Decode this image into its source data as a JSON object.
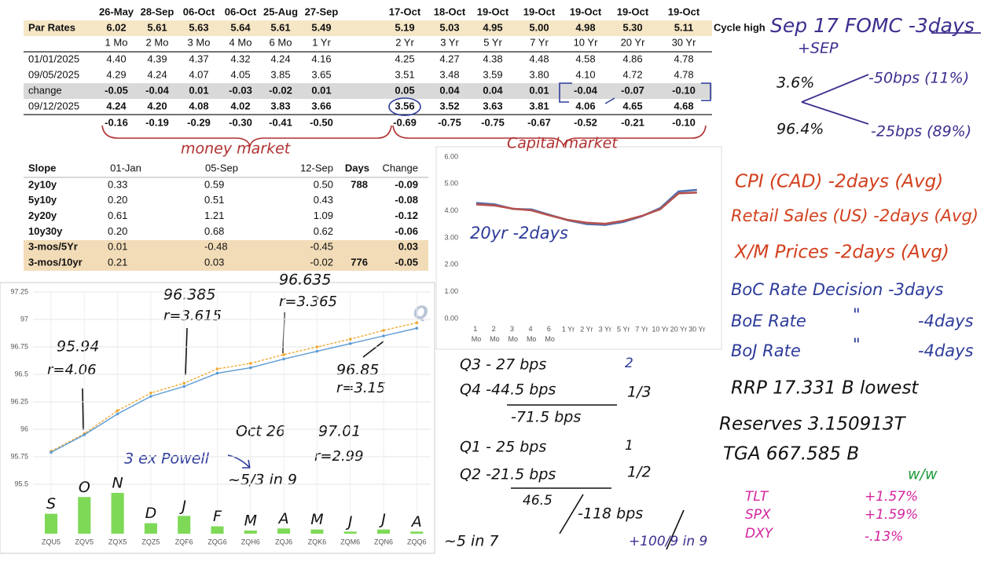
{
  "rates_table": {
    "dates": [
      "26-May",
      "28-Sep",
      "06-Oct",
      "06-Oct",
      "25-Aug",
      "27-Sep",
      "17-Oct",
      "18-Oct",
      "19-Oct",
      "19-Oct",
      "19-Oct",
      "19-Oct",
      "19-Oct"
    ],
    "par_label": "Par Rates",
    "par_rates": [
      "6.02",
      "5.61",
      "5.63",
      "5.64",
      "5.61",
      "5.49",
      "5.19",
      "5.03",
      "4.95",
      "5.00",
      "4.98",
      "5.30",
      "5.11"
    ],
    "cycle_label": "Cycle high",
    "tenors": [
      "1 Mo",
      "2 Mo",
      "3 Mo",
      "4 Mo",
      "6 Mo",
      "1 Yr",
      "2 Yr",
      "3 Yr",
      "5 Yr",
      "7 Yr",
      "10 Yr",
      "20 Yr",
      "30 Yr"
    ],
    "rows": [
      {
        "label": "01/01/2025",
        "values": [
          "4.40",
          "4.39",
          "4.37",
          "4.32",
          "4.24",
          "4.16",
          "4.25",
          "4.27",
          "4.38",
          "4.48",
          "4.58",
          "4.86",
          "4.78"
        ]
      },
      {
        "label": "09/05/2025",
        "values": [
          "4.29",
          "4.24",
          "4.07",
          "4.05",
          "3.85",
          "3.65",
          "3.51",
          "3.48",
          "3.59",
          "3.80",
          "4.10",
          "4.72",
          "4.78"
        ]
      },
      {
        "label": "change",
        "values": [
          "-0.05",
          "-0.04",
          "0.01",
          "-0.03",
          "-0.02",
          "0.01",
          "0.05",
          "0.04",
          "0.04",
          "0.01",
          "-0.04",
          "-0.07",
          "-0.10"
        ]
      },
      {
        "label": "09/12/2025",
        "values": [
          "4.24",
          "4.20",
          "4.08",
          "4.02",
          "3.83",
          "3.66",
          "3.56",
          "3.52",
          "3.63",
          "3.81",
          "4.06",
          "4.65",
          "4.68"
        ]
      },
      {
        "values": [
          "-0.16",
          "-0.19",
          "-0.29",
          "-0.30",
          "-0.41",
          "-0.50",
          "-0.69",
          "-0.75",
          "-0.75",
          "-0.67",
          "-0.52",
          "-0.21",
          "-0.10"
        ]
      }
    ]
  },
  "slope_table": {
    "headers": [
      "Slope",
      "01-Jan",
      "05-Sep",
      "12-Sep",
      "Days",
      "Change"
    ],
    "rows": [
      [
        "2y10y",
        "0.33",
        "0.59",
        "0.50",
        "788",
        "-0.09"
      ],
      [
        "5y10y",
        "0.20",
        "0.51",
        "0.43",
        null,
        "-0.08"
      ],
      [
        "2y20y",
        "0.61",
        "1.21",
        "1.09",
        null,
        "-0.12"
      ],
      [
        "10y30y",
        "0.20",
        "0.68",
        "0.62",
        null,
        "-0.06"
      ],
      [
        "3-mos/5Yr",
        "0.01",
        "-0.48",
        "-0.45",
        null,
        "0.03"
      ],
      [
        "3-mos/10yr",
        "0.21",
        "0.03",
        "-0.02",
        "776",
        "-0.05"
      ]
    ]
  },
  "chart_data": [
    {
      "type": "line",
      "categories": [
        "1 Mo",
        "2 Mo",
        "3 Mo",
        "4 Mo",
        "6 Mo",
        "1 Yr",
        "2 Yr",
        "3 Yr",
        "5 Yr",
        "7 Yr",
        "10 Yr",
        "20 Yr",
        "30 Yr"
      ],
      "series": [
        {
          "color": "#4f6fb0",
          "values": [
            4.29,
            4.24,
            4.07,
            4.05,
            3.85,
            3.65,
            3.51,
            3.48,
            3.59,
            3.8,
            4.1,
            4.72,
            4.78
          ]
        },
        {
          "color": "#b5524e",
          "values": [
            4.24,
            4.2,
            4.08,
            4.02,
            3.83,
            3.66,
            3.56,
            3.52,
            3.63,
            3.81,
            4.06,
            4.65,
            4.68
          ]
        }
      ],
      "ylim": [
        0,
        6
      ],
      "yticks": [
        {
          "value": 0,
          "label": "0.00"
        },
        {
          "value": 1,
          "label": "1.00"
        },
        {
          "value": 2,
          "label": "2.00"
        },
        {
          "value": 3,
          "label": "3.00"
        },
        {
          "value": 4,
          "label": "4.00"
        },
        {
          "value": 5,
          "label": "5.00"
        },
        {
          "value": 6,
          "label": "6.00"
        }
      ],
      "grid": false
    },
    {
      "type": "line",
      "categories": [
        "ZQU5",
        "ZQV5",
        "ZQX5",
        "ZQZ5",
        "ZQF6",
        "ZQG6",
        "ZQH6",
        "ZQJ6",
        "ZQK6",
        "ZQM6",
        "ZQN6",
        "ZQQ6"
      ],
      "series": [
        {
          "color": "#f0a830",
          "dashed": true,
          "values": [
            95.8,
            95.96,
            96.17,
            96.33,
            96.42,
            96.55,
            96.6,
            96.68,
            96.75,
            96.82,
            96.9,
            96.97
          ]
        },
        {
          "color": "#5b9bd5",
          "values": [
            95.79,
            95.95,
            96.14,
            96.3,
            96.39,
            96.51,
            96.56,
            96.64,
            96.71,
            96.78,
            96.85,
            96.92
          ]
        },
        {
          "type": "bar",
          "axis": "y2",
          "color": "#7ed957",
          "values": [
            19,
            35,
            39,
            10,
            17,
            7,
            3,
            5,
            4,
            2,
            4,
            2
          ]
        }
      ],
      "bar_labels": [
        "S",
        "O",
        "N",
        "D",
        "J",
        "F",
        "M",
        "A",
        "M",
        "J",
        "J",
        "A"
      ],
      "ylim": [
        95.05,
        97.25
      ],
      "yticks": [
        95.5,
        95.75,
        96,
        96.25,
        96.5,
        96.75,
        97,
        97.25
      ],
      "y2lim": [
        0,
        60
      ],
      "grid": true
    }
  ],
  "notes": [
    "Sep 17 FOMC -3days",
    "+SEP",
    "3.6%",
    "-50bps (11%)",
    "96.4%",
    "-25bps (89%)",
    "CPI (CAD) -2days (Avg)",
    "Retail Sales (US) -2days (Avg)",
    "X/M Prices -2days (Avg)",
    "BoC Rate Decision -3days",
    "BoE Rate",
    "\"",
    "-4days",
    "BoJ Rate",
    "\"",
    "-4days",
    "RRP 17.331 B lowest",
    "Reserves 3.150913T",
    "TGA 667.585 B",
    "w/w",
    "TLT",
    "+1.57%",
    "SPX",
    "+1.59%",
    "DXY",
    "-.13%",
    "Q3 - 27 bps",
    "2",
    "Q4 -44.5 bps",
    "1/3",
    "-71.5 bps",
    "Q1 - 25 bps",
    "1",
    "Q2 -21.5 bps",
    "1/2",
    "46.5",
    "-118 bps",
    "+100/9 in 9",
    "~5 in 7",
    "money market",
    "Capital market",
    "20yr -2days",
    "95.94",
    "r=4.06",
    "96.385",
    "r=3.615",
    "96.635",
    "r=3.365",
    "96.85",
    "r=3.15",
    "Oct 26",
    "97.01",
    "r=2.99",
    "3 ex Powell",
    "~5/3 in 9",
    "Q"
  ]
}
